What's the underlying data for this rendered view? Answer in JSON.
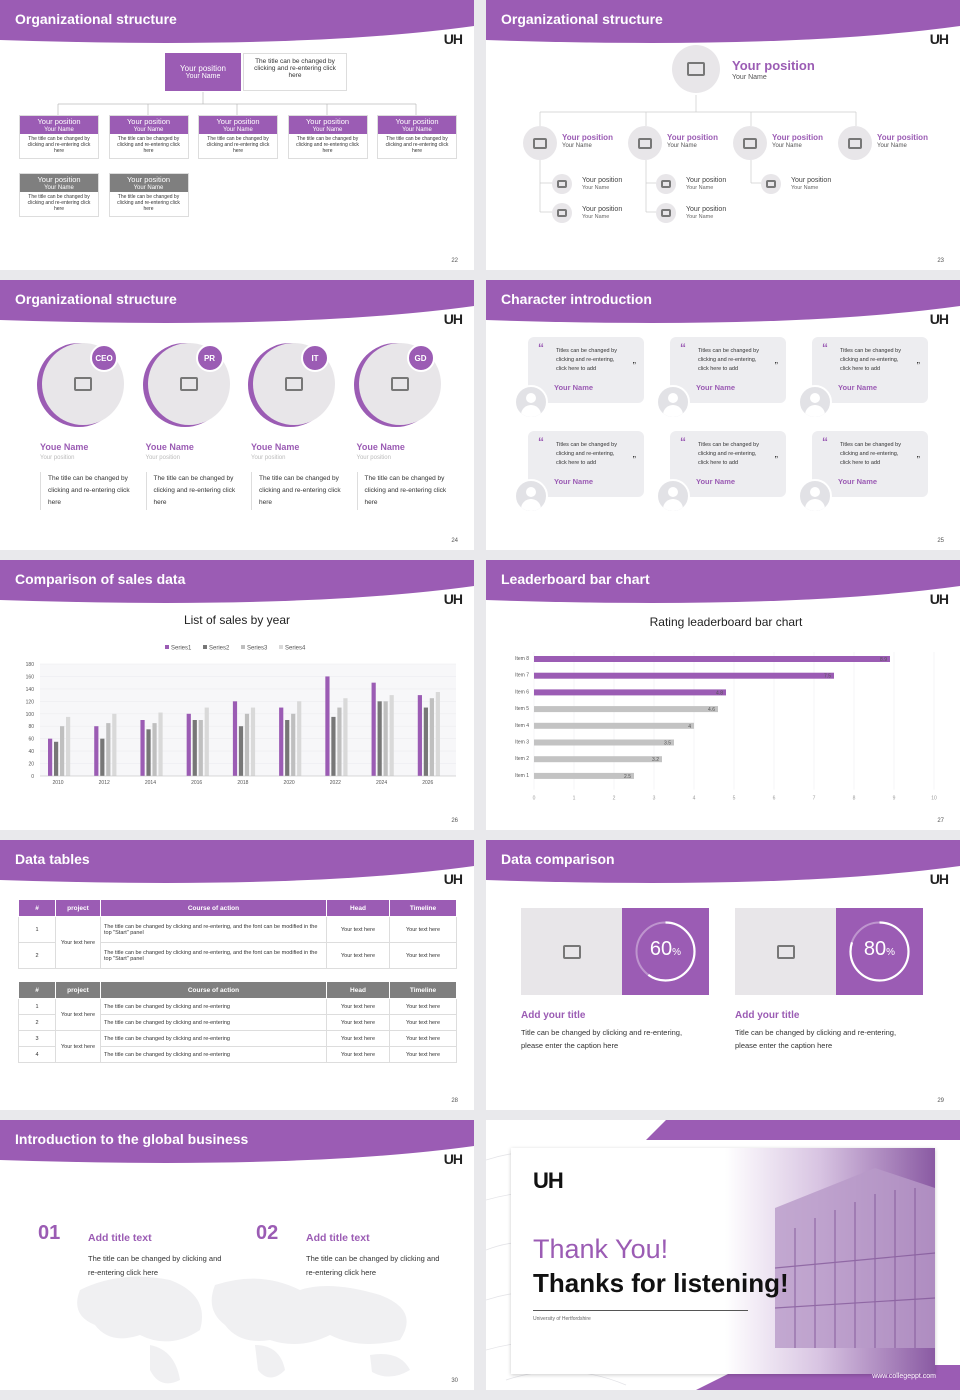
{
  "colors": {
    "accent": "#9b5cb4",
    "grey": "#7f7f7f",
    "light": "#e8e6e9"
  },
  "s22": {
    "title": "Organizational structure",
    "page": "22",
    "top": {
      "pos": "Your position",
      "name": "Your Name",
      "desc": "The title can be changed by clicking and re-entering click here"
    },
    "row1": [
      {
        "pos": "Your position",
        "name": "Your Name",
        "desc": "The title can be changed by clicking and re-entering click here"
      },
      {
        "pos": "Your position",
        "name": "Your Name",
        "desc": "The title can be changed by clicking and re-entering click here"
      },
      {
        "pos": "Your position",
        "name": "Your Name",
        "desc": "The title can be changed by clicking and re-entering click here"
      },
      {
        "pos": "Your position",
        "name": "Your Name",
        "desc": "The title can be changed by clicking and re-entering click here"
      },
      {
        "pos": "Your position",
        "name": "Your Name",
        "desc": "The title can be changed by clicking and re-entering click here"
      }
    ],
    "row2": [
      {
        "pos": "Your position",
        "name": "Your Name",
        "desc": "The title can be changed by clicking and re-entering click here"
      },
      {
        "pos": "Your position",
        "name": "Your Name",
        "desc": "The title can be changed by clicking and re-entering click here"
      }
    ]
  },
  "s23": {
    "title": "Organizational structure",
    "page": "23",
    "top": {
      "pos": "Your position",
      "name": "Your Name"
    },
    "row1": [
      {
        "pos": "Your position",
        "name": "Your Name"
      },
      {
        "pos": "Your position",
        "name": "Your Name"
      },
      {
        "pos": "Your position",
        "name": "Your Name"
      },
      {
        "pos": "Your position",
        "name": "Your Name"
      }
    ],
    "subs": [
      {
        "pos": "Your position",
        "name": "Your Name"
      },
      {
        "pos": "Your position",
        "name": "Your Name"
      },
      {
        "pos": "Your position",
        "name": "Your Name"
      },
      {
        "pos": "Your position",
        "name": "Your Name"
      },
      {
        "pos": "Your position",
        "name": "Your Name"
      }
    ]
  },
  "s24": {
    "title": "Organizational structure",
    "page": "24",
    "people": [
      {
        "tag": "CEO",
        "name": "Youe Name",
        "pos": "Your position",
        "desc": "The title can be changed by clicking and re-entering click here"
      },
      {
        "tag": "PR",
        "name": "Youe Name",
        "pos": "Your position",
        "desc": "The title can be changed by clicking and re-entering click here"
      },
      {
        "tag": "IT",
        "name": "Youe Name",
        "pos": "Your position",
        "desc": "The title can be changed by clicking and re-entering click here"
      },
      {
        "tag": "GD",
        "name": "Youe Name",
        "pos": "Your position",
        "desc": "The title can be changed by clicking and re-entering click here"
      }
    ]
  },
  "s25": {
    "title": "Character introduction",
    "page": "25",
    "cards": [
      {
        "text": "Titles can be changed by clicking and re-entering, click here to add",
        "name": "Your Name"
      },
      {
        "text": "Titles can be changed by clicking and re-entering, click here to add",
        "name": "Your Name"
      },
      {
        "text": "Titles can be changed by clicking and re-entering, click here to add",
        "name": "Your Name"
      },
      {
        "text": "Titles can be changed by clicking and re-entering, click here to add",
        "name": "Your Name"
      },
      {
        "text": "Titles can be changed by clicking and re-entering, click here to add",
        "name": "Your Name"
      },
      {
        "text": "Titles can be changed by clicking and re-entering, click here to add",
        "name": "Your Name"
      }
    ]
  },
  "s26": {
    "title": "Comparison of sales data",
    "page": "26"
  },
  "s27": {
    "title": "Leaderboard bar chart",
    "page": "27"
  },
  "chart_data": [
    {
      "type": "bar",
      "title": "List of sales by year",
      "categories": [
        "2010",
        "2012",
        "2014",
        "2016",
        "2018",
        "2020",
        "2022",
        "2024",
        "2026"
      ],
      "series": [
        {
          "name": "Series1",
          "values": [
            60,
            80,
            90,
            100,
            120,
            110,
            160,
            150,
            130
          ]
        },
        {
          "name": "Series2",
          "values": [
            55,
            60,
            75,
            90,
            80,
            90,
            95,
            120,
            110
          ]
        },
        {
          "name": "Series3",
          "values": [
            80,
            85,
            85,
            90,
            100,
            100,
            110,
            120,
            125
          ]
        },
        {
          "name": "Series4",
          "values": [
            95,
            100,
            102,
            110,
            110,
            120,
            125,
            130,
            135
          ]
        }
      ],
      "ylim": [
        0,
        180
      ],
      "yticks": [
        0,
        20,
        40,
        60,
        80,
        100,
        120,
        140,
        160,
        180
      ],
      "legend": "top"
    },
    {
      "type": "bar",
      "orientation": "horizontal",
      "title": "Rating leaderboard bar chart",
      "categories": [
        "Item 8",
        "Item 7",
        "Item 6",
        "Item 5",
        "Item 4",
        "Item 3",
        "Item 2",
        "Item 1"
      ],
      "values": [
        8.9,
        7.5,
        4.8,
        4.6,
        4,
        3.5,
        3.2,
        2.5
      ],
      "xlim": [
        0,
        10
      ],
      "xticks": [
        "0",
        "1",
        "2",
        "3",
        "4",
        "5",
        "6",
        "7",
        "8",
        "9",
        "10"
      ],
      "highlight_top": 3
    }
  ],
  "s28": {
    "title": "Data tables",
    "page": "28",
    "t1": {
      "headers": [
        "#",
        "project",
        "Course of action",
        "Head",
        "Timeline"
      ],
      "group": "Your text here",
      "rows": [
        {
          "n": "1",
          "action": "The title can be changed by clicking and re-entering, and the font can be modified in the top \"Start\" panel",
          "head": "Your text here",
          "time": "Your text here"
        },
        {
          "n": "2",
          "action": "The title can be changed by clicking and re-entering, and the font can be modified in the top \"Start\" panel",
          "head": "Your text here",
          "time": "Your text here"
        }
      ]
    },
    "t2": {
      "headers": [
        "#",
        "project",
        "Course of action",
        "Head",
        "Timeline"
      ],
      "groups": [
        "Your text here",
        "Your text here"
      ],
      "rows": [
        {
          "n": "1",
          "action": "The title can be changed by clicking and re-entering",
          "head": "Your text here",
          "time": "Your text here"
        },
        {
          "n": "2",
          "action": "The title can be changed by clicking and re-entering",
          "head": "Your text here",
          "time": "Your text here"
        },
        {
          "n": "3",
          "action": "The title can be changed by clicking and re-entering",
          "head": "Your text here",
          "time": "Your text here"
        },
        {
          "n": "4",
          "action": "The title can be changed by clicking and re-entering",
          "head": "Your text here",
          "time": "Your text here"
        }
      ]
    }
  },
  "s29": {
    "title": "Data comparison",
    "page": "29",
    "items": [
      {
        "pct": 60,
        "num": "60",
        "unit": "%",
        "title": "Add your title",
        "desc": "Title can be changed by clicking and re-entering, please enter the caption here"
      },
      {
        "pct": 80,
        "num": "80",
        "unit": "%",
        "title": "Add your title",
        "desc": "Title can be changed by clicking and re-entering, please enter the caption here"
      }
    ]
  },
  "s30": {
    "title": "Introduction to the global business",
    "page": "30",
    "items": [
      {
        "num": "01",
        "title": "Add title text",
        "desc": "The title can be changed by clicking and re-entering click here"
      },
      {
        "num": "02",
        "title": "Add title text",
        "desc": "The title can be changed by clicking and re-entering click here"
      }
    ]
  },
  "s31": {
    "logo": "UH",
    "line1": "Thank You!",
    "line2": "Thanks for listening!",
    "sub": "University of Hertfordshire",
    "url": "www.collegeppt.com"
  },
  "logo": "UH"
}
